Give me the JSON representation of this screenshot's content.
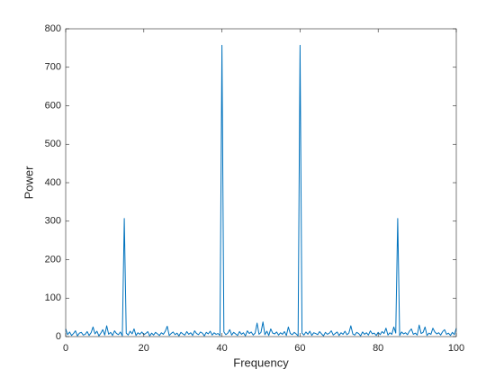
{
  "chart_data": {
    "type": "line",
    "xlabel": "Frequency",
    "ylabel": "Power",
    "xlim": [
      0,
      100
    ],
    "xticks": [
      0,
      20,
      40,
      60,
      80,
      100
    ],
    "ylim": [
      0,
      800
    ],
    "yticks": [
      0,
      100,
      200,
      300,
      400,
      500,
      600,
      700,
      800
    ],
    "box": true,
    "x": [
      0,
      0.5,
      1,
      1.5,
      2,
      2.5,
      3,
      3.5,
      4,
      4.5,
      5,
      5.5,
      6,
      6.5,
      7,
      7.5,
      8,
      8.5,
      9,
      9.5,
      10,
      10.5,
      11,
      11.5,
      12,
      12.5,
      13,
      13.5,
      14,
      14.5,
      15,
      15.5,
      16,
      16.5,
      17,
      17.5,
      18,
      18.5,
      19,
      19.5,
      20,
      20.5,
      21,
      21.5,
      22,
      22.5,
      23,
      23.5,
      24,
      24.5,
      25,
      25.5,
      26,
      26.5,
      27,
      27.5,
      28,
      28.5,
      29,
      29.5,
      30,
      30.5,
      31,
      31.5,
      32,
      32.5,
      33,
      33.5,
      34,
      34.5,
      35,
      35.5,
      36,
      36.5,
      37,
      37.5,
      38,
      38.5,
      39,
      39.5,
      40,
      40.5,
      41,
      41.5,
      42,
      42.5,
      43,
      43.5,
      44,
      44.5,
      45,
      45.5,
      46,
      46.5,
      47,
      47.5,
      48,
      48.5,
      49,
      49.5,
      50,
      50.5,
      51,
      51.5,
      52,
      52.5,
      53,
      53.5,
      54,
      54.5,
      55,
      55.5,
      56,
      56.5,
      57,
      57.5,
      58,
      58.5,
      59,
      59.5,
      60,
      60.5,
      61,
      61.5,
      62,
      62.5,
      63,
      63.5,
      64,
      64.5,
      65,
      65.5,
      66,
      66.5,
      67,
      67.5,
      68,
      68.5,
      69,
      69.5,
      70,
      70.5,
      71,
      71.5,
      72,
      72.5,
      73,
      73.5,
      74,
      74.5,
      75,
      75.5,
      76,
      76.5,
      77,
      77.5,
      78,
      78.5,
      79,
      79.5,
      80,
      80.5,
      81,
      81.5,
      82,
      82.5,
      83,
      83.5,
      84,
      84.5,
      85,
      85.5,
      86,
      86.5,
      87,
      87.5,
      88,
      88.5,
      89,
      89.5,
      90,
      90.5,
      91,
      91.5,
      92,
      92.5,
      93,
      93.5,
      94,
      94.5,
      95,
      95.5,
      96,
      96.5,
      97,
      97.5,
      98,
      98.5,
      99,
      99.5,
      100
    ],
    "series": [
      {
        "color": "#0072bd",
        "values": [
          20,
          5,
          12,
          3,
          8,
          15,
          2,
          9,
          11,
          4,
          6,
          13,
          3,
          10,
          25,
          7,
          14,
          2,
          9,
          18,
          4,
          28,
          6,
          11,
          3,
          15,
          8,
          5,
          12,
          2,
          307,
          9,
          4,
          14,
          7,
          20,
          3,
          10,
          6,
          12,
          5,
          8,
          13,
          2,
          9,
          4,
          11,
          7,
          3,
          10,
          6,
          14,
          27,
          3,
          8,
          12,
          5,
          9,
          2,
          11,
          7,
          4,
          13,
          6,
          10,
          3,
          15,
          8,
          5,
          12,
          9,
          2,
          11,
          7,
          14,
          4,
          10,
          6,
          8,
          3,
          757,
          12,
          5,
          9,
          18,
          4,
          11,
          7,
          3,
          13,
          6,
          10,
          2,
          15,
          8,
          12,
          4,
          9,
          35,
          6,
          11,
          38,
          5,
          14,
          3,
          20,
          9,
          7,
          12,
          4,
          10,
          6,
          13,
          3,
          25,
          8,
          5,
          11,
          7,
          2,
          757,
          9,
          4,
          12,
          6,
          14,
          3,
          10,
          8,
          5,
          13,
          7,
          2,
          11,
          6,
          9,
          15,
          4,
          8,
          12,
          3,
          10,
          6,
          14,
          5,
          9,
          28,
          7,
          4,
          11,
          8,
          2,
          12,
          6,
          10,
          4,
          15,
          7,
          9,
          3,
          11,
          5,
          13,
          8,
          22,
          4,
          10,
          6,
          25,
          9,
          307,
          3,
          12,
          7,
          10,
          5,
          14,
          20,
          6,
          9,
          4,
          30,
          8,
          11,
          25,
          3,
          9,
          6,
          22,
          12,
          7,
          10,
          4,
          13,
          18,
          6,
          9,
          3,
          11,
          5,
          22
        ]
      }
    ]
  }
}
